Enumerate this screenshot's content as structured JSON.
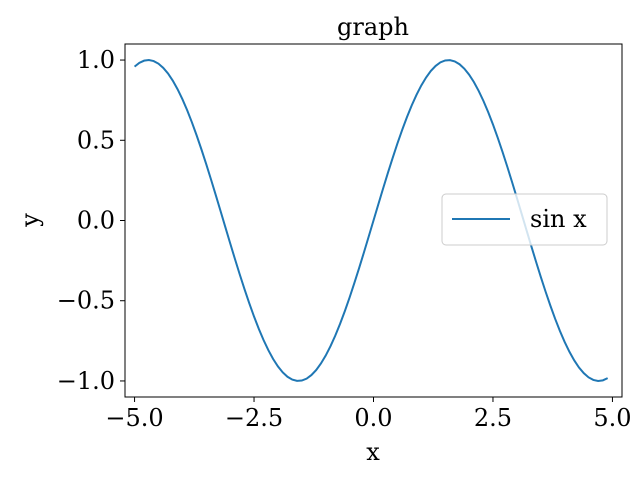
{
  "chart_data": {
    "type": "line",
    "title": "graph",
    "xlabel": "x",
    "ylabel": "y",
    "xlim": [
      -5.2,
      5.2
    ],
    "ylim": [
      -1.1,
      1.1
    ],
    "xticks": [
      -5.0,
      -2.5,
      0.0,
      2.5,
      5.0
    ],
    "xtick_labels": [
      "−5.0",
      "−2.5",
      "0.0",
      "2.5",
      "5.0"
    ],
    "yticks": [
      -1.0,
      -0.5,
      0.0,
      0.5,
      1.0
    ],
    "ytick_labels": [
      "−1.0",
      "−0.5",
      "0.0",
      "0.5",
      "1.0"
    ],
    "grid": false,
    "legend_position": "center-right",
    "series": [
      {
        "name": "sin x",
        "color": "#1f77b4",
        "function": "sin",
        "x_start": -5.0,
        "x_end": 4.9,
        "x_step": 0.1
      }
    ]
  }
}
